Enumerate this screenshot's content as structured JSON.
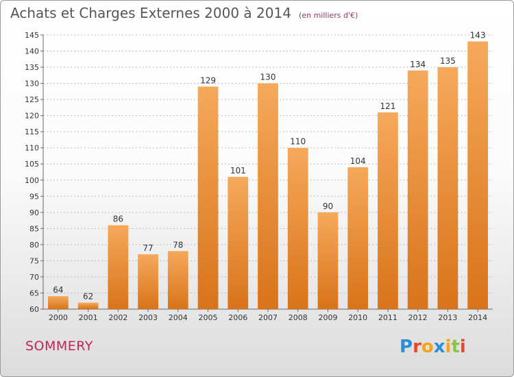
{
  "header": {
    "title": "Achats et Charges Externes 2000 à 2014",
    "subtitle": "(en milliers d'€)"
  },
  "footer": {
    "commune": "SOMMERY",
    "logo_text": "Proxiti",
    "logo_colors": [
      "#2a8fd6",
      "#e8462a",
      "#f2a41c",
      "#2a8fd6",
      "#f2a41c",
      "#8cc63e",
      "#e8462a"
    ]
  },
  "colors": {
    "bar_light": "#f5a95a",
    "bar_dark": "#d9731a",
    "grid": "#bbbbbb"
  },
  "chart_data": {
    "type": "bar",
    "categories": [
      "2000",
      "2001",
      "2002",
      "2003",
      "2004",
      "2005",
      "2006",
      "2007",
      "2008",
      "2009",
      "2010",
      "2011",
      "2012",
      "2013",
      "2014"
    ],
    "values": [
      64,
      62,
      86,
      77,
      78,
      129,
      101,
      130,
      110,
      90,
      104,
      121,
      134,
      135,
      143
    ],
    "ylim": [
      60,
      145
    ],
    "yticks": [
      60,
      65,
      70,
      75,
      80,
      85,
      90,
      95,
      100,
      105,
      110,
      115,
      120,
      125,
      130,
      135,
      140,
      145
    ],
    "grid": true,
    "data_labels": true
  }
}
